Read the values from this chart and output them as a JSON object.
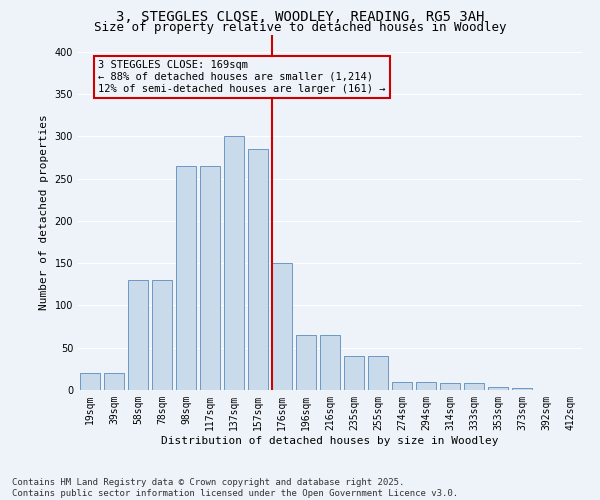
{
  "title1": "3, STEGGLES CLOSE, WOODLEY, READING, RG5 3AH",
  "title2": "Size of property relative to detached houses in Woodley",
  "xlabel": "Distribution of detached houses by size in Woodley",
  "ylabel": "Number of detached properties",
  "bar_labels": [
    "19sqm",
    "39sqm",
    "58sqm",
    "78sqm",
    "98sqm",
    "117sqm",
    "137sqm",
    "157sqm",
    "176sqm",
    "196sqm",
    "216sqm",
    "235sqm",
    "255sqm",
    "274sqm",
    "294sqm",
    "314sqm",
    "333sqm",
    "353sqm",
    "373sqm",
    "392sqm",
    "412sqm"
  ],
  "bar_values": [
    20,
    20,
    130,
    130,
    265,
    265,
    300,
    285,
    150,
    65,
    65,
    40,
    40,
    10,
    10,
    8,
    8,
    3,
    2,
    0,
    0
  ],
  "bar_color": "#c9daea",
  "bar_edge_color": "#5a8abf",
  "background_color": "#eef3f9",
  "grid_color": "#ffffff",
  "vline_x": 8.0,
  "vline_color": "#cc0000",
  "annotation_text": "3 STEGGLES CLOSE: 169sqm\n← 88% of detached houses are smaller (1,214)\n12% of semi-detached houses are larger (161) →",
  "annotation_box_color": "#cc0000",
  "footnote": "Contains HM Land Registry data © Crown copyright and database right 2025.\nContains public sector information licensed under the Open Government Licence v3.0.",
  "ylim": [
    0,
    420
  ],
  "yticks": [
    0,
    50,
    100,
    150,
    200,
    250,
    300,
    350,
    400
  ],
  "title_fontsize": 10,
  "subtitle_fontsize": 9,
  "axis_label_fontsize": 8,
  "tick_fontsize": 7,
  "footnote_fontsize": 6.5,
  "annotation_fontsize": 7.5
}
